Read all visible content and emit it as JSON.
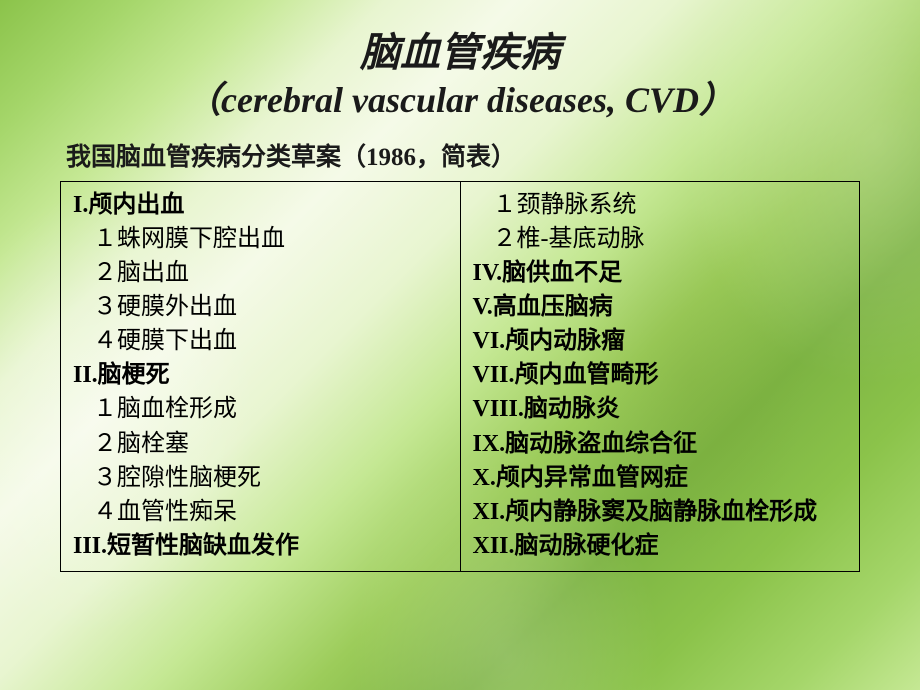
{
  "title": {
    "main": "脑血管疾病",
    "sub_open": "（",
    "sub_en": "cerebral vascular diseases, CVD",
    "sub_close": "）"
  },
  "subtitle": "我国脑血管疾病分类草案（1986，简表）",
  "left": [
    {
      "text": "I.颅内出血",
      "roman": true,
      "indent": 0
    },
    {
      "text": "１蛛网膜下腔出血",
      "roman": false,
      "indent": 1
    },
    {
      "text": "２脑出血",
      "roman": false,
      "indent": 1
    },
    {
      "text": "３硬膜外出血",
      "roman": false,
      "indent": 1
    },
    {
      "text": "４硬膜下出血",
      "roman": false,
      "indent": 1
    },
    {
      "text": "II.脑梗死",
      "roman": true,
      "indent": 0
    },
    {
      "text": "１脑血栓形成",
      "roman": false,
      "indent": 1
    },
    {
      "text": "２脑栓塞",
      "roman": false,
      "indent": 1
    },
    {
      "text": "３腔隙性脑梗死",
      "roman": false,
      "indent": 1
    },
    {
      "text": "４血管性痴呆",
      "roman": false,
      "indent": 1
    },
    {
      "text": "III.短暂性脑缺血发作",
      "roman": true,
      "indent": 0
    }
  ],
  "right": [
    {
      "text": "１颈静脉系统",
      "roman": false,
      "indent": 1
    },
    {
      "text": "２椎-基底动脉",
      "roman": false,
      "indent": 1
    },
    {
      "text": "IV.脑供血不足",
      "roman": true,
      "indent": 0
    },
    {
      "text": "V.高血压脑病",
      "roman": true,
      "indent": 0
    },
    {
      "text": "VI.颅内动脉瘤",
      "roman": true,
      "indent": 0
    },
    {
      "text": "VII.颅内血管畸形",
      "roman": true,
      "indent": 0
    },
    {
      "text": "VIII.脑动脉炎",
      "roman": true,
      "indent": 0
    },
    {
      "text": "IX.脑动脉盗血综合征",
      "roman": true,
      "indent": 0
    },
    {
      "text": "X.颅内异常血管网症",
      "roman": true,
      "indent": 0
    },
    {
      "text": "XI.颅内静脉窦及脑静脉血栓形成",
      "roman": true,
      "indent": 0
    },
    {
      "text": "XII.脑动脉硬化症",
      "roman": true,
      "indent": 0
    }
  ],
  "colors": {
    "text": "#000000",
    "border": "#000000"
  }
}
